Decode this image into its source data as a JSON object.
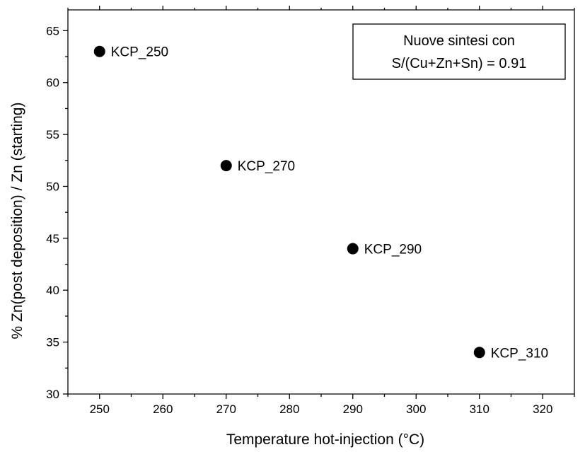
{
  "chart_data": {
    "type": "scatter",
    "xlabel": "Temperature hot-injection (°C)",
    "ylabel": "% Zn(post deposition) / Zn (starting)",
    "xlim": [
      245,
      325
    ],
    "ylim": [
      30,
      67
    ],
    "x_ticks": [
      250,
      260,
      270,
      280,
      290,
      300,
      310,
      320
    ],
    "y_ticks": [
      30,
      35,
      40,
      45,
      50,
      55,
      60,
      65
    ],
    "grid": false,
    "legend_placement": "top-right",
    "annotation": [
      "Nuove sintesi con",
      "S/(Cu+Zn+Sn) = 0.91"
    ],
    "points": [
      {
        "x": 250,
        "y": 63,
        "label": "KCP_250"
      },
      {
        "x": 270,
        "y": 52,
        "label": "KCP_270"
      },
      {
        "x": 290,
        "y": 44,
        "label": "KCP_290"
      },
      {
        "x": 310,
        "y": 34,
        "label": "KCP_310"
      }
    ],
    "marker_color": "#000000"
  }
}
